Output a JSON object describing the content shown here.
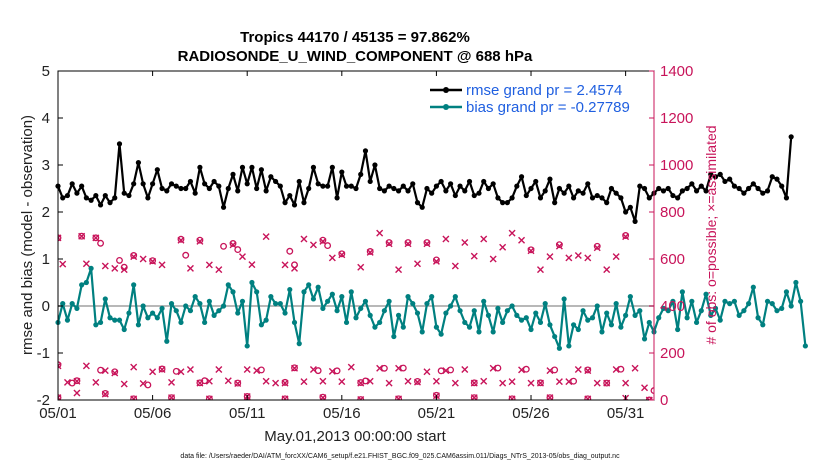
{
  "chart_data": {
    "type": "line",
    "title_line1": "Tropics 44170 / 45135 = 97.862%",
    "title_line2": "RADIOSONDE_U_WIND_COMPONENT @ 688 hPa",
    "xlabel": "May.01,2013 00:00:00 start",
    "ylabel": "rmse and bias (model - observation)",
    "ylabel_right": "# of obs: o=possible; ×=assimilated",
    "ylim": [
      -2,
      5
    ],
    "ylim_right": [
      0,
      1400
    ],
    "xlim": [
      0,
      31.5
    ],
    "xticks": [
      0,
      5,
      10,
      15,
      20,
      25,
      30
    ],
    "xtick_labels": [
      "05/01",
      "05/06",
      "05/11",
      "05/16",
      "05/21",
      "05/26",
      "05/31"
    ],
    "yticks": [
      -2,
      -1,
      0,
      1,
      2,
      3,
      4,
      5
    ],
    "ytick_labels": [
      "-2",
      "-1",
      "0",
      "1",
      "2",
      "3",
      "4",
      "5"
    ],
    "yticks_right": [
      0,
      200,
      400,
      600,
      800,
      1000,
      1200,
      1400
    ],
    "ytick_labels_right": [
      "0",
      "200",
      "400",
      "600",
      "800",
      "1000",
      "1200",
      "1400"
    ],
    "zero_line": 0,
    "legend_position": "top-right",
    "legend": [
      {
        "name": "rmse grand pr = 2.4574",
        "color": "#000000"
      },
      {
        "name": "bias grand pr = -0.27789",
        "color": "#008080"
      }
    ],
    "colors": {
      "rmse": "#000000",
      "bias": "#008080",
      "counts": "#c8145a",
      "zero": "#b8b8b8"
    },
    "series": [
      {
        "name": "rmse",
        "x_step": 0.25,
        "x_start": 0,
        "values": [
          2.55,
          2.3,
          2.35,
          2.6,
          2.4,
          2.55,
          2.3,
          2.25,
          2.35,
          2.15,
          2.35,
          2.2,
          2.3,
          3.45,
          2.4,
          2.35,
          2.6,
          3.05,
          2.6,
          2.3,
          2.6,
          2.9,
          2.5,
          2.45,
          2.6,
          2.55,
          2.5,
          2.5,
          2.65,
          2.4,
          2.95,
          2.6,
          2.5,
          2.65,
          2.55,
          2.1,
          2.5,
          2.8,
          2.45,
          2.95,
          2.6,
          2.95,
          2.5,
          2.9,
          2.45,
          2.75,
          2.65,
          2.55,
          2.2,
          2.35,
          2.15,
          2.65,
          2.2,
          2.5,
          2.95,
          2.6,
          2.55,
          2.55,
          2.95,
          2.3,
          2.85,
          2.55,
          2.55,
          2.5,
          2.8,
          3.3,
          2.65,
          3.0,
          2.5,
          2.45,
          2.55,
          2.5,
          2.45,
          2.55,
          2.45,
          2.6,
          2.2,
          2.1,
          2.5,
          2.4,
          2.55,
          2.65,
          2.45,
          2.6,
          2.35,
          2.55,
          2.45,
          2.65,
          2.35,
          2.4,
          2.65,
          2.5,
          2.6,
          2.3,
          2.2,
          2.2,
          2.3,
          2.55,
          2.75,
          2.35,
          2.5,
          2.65,
          2.3,
          2.45,
          2.7,
          2.2,
          2.5,
          2.4,
          2.55,
          2.3,
          2.45,
          2.4,
          2.6,
          2.3,
          2.35,
          2.3,
          2.2,
          2.5,
          2.4,
          2.3,
          2.0,
          2.1,
          1.8,
          2.55,
          2.5,
          2.3,
          2.4,
          2.5,
          2.45,
          2.5,
          2.35,
          2.3,
          2.45,
          2.5,
          2.6,
          2.45,
          2.55,
          2.45,
          2.8,
          2.75,
          2.8,
          2.65,
          2.7,
          2.55,
          2.5,
          2.4,
          2.5,
          2.6,
          2.5,
          2.4,
          2.45,
          2.75,
          2.7,
          2.55,
          2.3,
          3.6
        ]
      },
      {
        "name": "bias",
        "x_step": 0.25,
        "x_start": 0,
        "values": [
          -0.35,
          0.05,
          -0.3,
          0.05,
          -0.05,
          0.45,
          0.5,
          0.8,
          -0.4,
          -0.35,
          0.15,
          -0.25,
          -0.3,
          -0.3,
          -0.5,
          -0.15,
          0.45,
          -0.4,
          0.0,
          -0.25,
          -0.15,
          -0.25,
          -0.05,
          -0.75,
          0.05,
          -0.1,
          -0.35,
          0.0,
          -0.1,
          0.2,
          0.05,
          -0.35,
          0.1,
          -0.2,
          -0.1,
          0.0,
          0.45,
          0.3,
          -0.15,
          0.1,
          -0.85,
          0.5,
          0.3,
          -0.4,
          -0.3,
          0.2,
          0.05,
          0.05,
          -0.15,
          0.35,
          -0.35,
          -0.8,
          0.3,
          0.45,
          0.15,
          0.4,
          -0.05,
          0.1,
          0.25,
          -0.1,
          0.2,
          -0.35,
          0.3,
          -0.25,
          -0.05,
          0.1,
          -0.2,
          -0.45,
          -0.35,
          -0.1,
          0.1,
          -0.65,
          -0.2,
          -0.45,
          0.2,
          0.05,
          -0.15,
          -0.55,
          0.05,
          0.2,
          -0.45,
          -0.6,
          -0.15,
          0.0,
          0.2,
          -0.1,
          -0.35,
          -0.45,
          -0.1,
          -0.55,
          0.1,
          -0.2,
          -0.55,
          -0.05,
          -0.35,
          -0.1,
          0.0,
          -0.2,
          -0.3,
          -0.25,
          -0.5,
          -0.15,
          -0.35,
          0.05,
          -0.4,
          -0.65,
          -0.9,
          0.15,
          -0.85,
          -0.4,
          -0.5,
          -0.1,
          -0.3,
          -0.25,
          0.0,
          -0.55,
          -0.15,
          -0.4,
          0.05,
          -0.45,
          -0.2,
          0.2,
          -0.2,
          -0.1,
          -0.7,
          -0.35,
          -0.55,
          -0.25,
          -0.05,
          -0.1,
          0.1,
          -0.5,
          0.3,
          -0.25,
          0.1,
          -0.35,
          -0.1,
          0.25,
          -0.2,
          -0.05,
          -0.3,
          0.1,
          0.05,
          0.1,
          -0.2,
          -0.1,
          0.05,
          0.4,
          -0.25,
          -0.4,
          0.1,
          0.05,
          -0.1,
          -0.05,
          0.3,
          0.0,
          0.5,
          0.1,
          -0.85
        ]
      },
      {
        "name": "obs possible",
        "axis": "right",
        "marker": "o",
        "values": [
          [
            0,
            690
          ],
          [
            1.25,
            697
          ],
          [
            2,
            690
          ],
          [
            2.25,
            667
          ],
          [
            3.25,
            594
          ],
          [
            3.5,
            565
          ],
          [
            4,
            615
          ],
          [
            5,
            593
          ],
          [
            6.5,
            684
          ],
          [
            6.75,
            616
          ],
          [
            7.5,
            680
          ],
          [
            8.75,
            654
          ],
          [
            9.25,
            666
          ],
          [
            9.5,
            640
          ],
          [
            12.25,
            633
          ],
          [
            12.5,
            575
          ],
          [
            14,
            680
          ],
          [
            14.25,
            657
          ],
          [
            15,
            622
          ],
          [
            16.5,
            632
          ],
          [
            17.5,
            670
          ],
          [
            18.5,
            670
          ],
          [
            19.5,
            670
          ],
          [
            20,
            596
          ],
          [
            25,
            639
          ],
          [
            26.5,
            661
          ],
          [
            28.5,
            654
          ],
          [
            30,
            700
          ],
          [
            0,
            150
          ],
          [
            0.75,
            72
          ],
          [
            1,
            82
          ],
          [
            2.25,
            127
          ],
          [
            3,
            120
          ],
          [
            4.75,
            64
          ],
          [
            5.5,
            132
          ],
          [
            6.25,
            122
          ],
          [
            7.5,
            73
          ],
          [
            7.75,
            82
          ],
          [
            9.5,
            72
          ],
          [
            10.75,
            128
          ],
          [
            12,
            75
          ],
          [
            12.5,
            137
          ],
          [
            13.75,
            125
          ],
          [
            14.75,
            124
          ],
          [
            16,
            74
          ],
          [
            16.25,
            81
          ],
          [
            17.25,
            135
          ],
          [
            18.25,
            136
          ],
          [
            19,
            79
          ],
          [
            20.25,
            124
          ],
          [
            20.75,
            128
          ],
          [
            22,
            73
          ],
          [
            23.25,
            136
          ],
          [
            24.75,
            131
          ],
          [
            25.5,
            73
          ],
          [
            26.25,
            128
          ],
          [
            27.25,
            80
          ],
          [
            28,
            128
          ],
          [
            29,
            72
          ],
          [
            29.75,
            131
          ],
          [
            31.5,
            40
          ],
          [
            0,
            10
          ],
          [
            2.5,
            28
          ],
          [
            4,
            5
          ],
          [
            6,
            10
          ],
          [
            8,
            5
          ],
          [
            10,
            15
          ],
          [
            12,
            5
          ],
          [
            14,
            12
          ],
          [
            16,
            2
          ],
          [
            18,
            5
          ],
          [
            20,
            20
          ],
          [
            22,
            10
          ],
          [
            24,
            5
          ],
          [
            26,
            10
          ],
          [
            28,
            5
          ],
          [
            31.25,
            0
          ]
        ]
      },
      {
        "name": "obs assimilated",
        "axis": "right",
        "marker": "x",
        "values": [
          [
            0,
            690
          ],
          [
            0.25,
            578
          ],
          [
            1.25,
            697
          ],
          [
            1.5,
            580
          ],
          [
            2,
            690
          ],
          [
            2.5,
            570
          ],
          [
            3,
            560
          ],
          [
            3.5,
            555
          ],
          [
            4,
            610
          ],
          [
            4.5,
            600
          ],
          [
            5,
            590
          ],
          [
            5.5,
            575
          ],
          [
            6.5,
            680
          ],
          [
            7,
            560
          ],
          [
            7.5,
            675
          ],
          [
            8,
            575
          ],
          [
            8.5,
            555
          ],
          [
            9.25,
            660
          ],
          [
            9.75,
            610
          ],
          [
            10.25,
            576
          ],
          [
            11,
            695
          ],
          [
            12,
            575
          ],
          [
            12.5,
            560
          ],
          [
            13,
            685
          ],
          [
            13.5,
            660
          ],
          [
            14,
            675
          ],
          [
            14.5,
            605
          ],
          [
            15,
            618
          ],
          [
            16,
            565
          ],
          [
            16.5,
            628
          ],
          [
            17,
            710
          ],
          [
            17.5,
            665
          ],
          [
            18,
            555
          ],
          [
            18.5,
            665
          ],
          [
            19,
            580
          ],
          [
            19.5,
            665
          ],
          [
            20,
            590
          ],
          [
            20.5,
            685
          ],
          [
            21,
            570
          ],
          [
            21.5,
            670
          ],
          [
            22,
            612
          ],
          [
            22.5,
            685
          ],
          [
            23,
            600
          ],
          [
            23.5,
            650
          ],
          [
            24,
            710
          ],
          [
            24.5,
            680
          ],
          [
            25,
            635
          ],
          [
            25.5,
            555
          ],
          [
            26,
            610
          ],
          [
            26.5,
            655
          ],
          [
            27,
            605
          ],
          [
            27.5,
            615
          ],
          [
            28,
            605
          ],
          [
            28.5,
            648
          ],
          [
            29,
            555
          ],
          [
            29.5,
            610
          ],
          [
            30,
            695
          ],
          [
            0,
            145
          ],
          [
            0.5,
            75
          ],
          [
            1,
            80
          ],
          [
            1.5,
            145
          ],
          [
            2,
            75
          ],
          [
            2.5,
            125
          ],
          [
            3,
            115
          ],
          [
            3.5,
            68
          ],
          [
            4,
            140
          ],
          [
            4.5,
            70
          ],
          [
            5,
            120
          ],
          [
            5.5,
            130
          ],
          [
            6,
            75
          ],
          [
            6.5,
            120
          ],
          [
            7,
            130
          ],
          [
            7.5,
            72
          ],
          [
            8,
            80
          ],
          [
            8.5,
            130
          ],
          [
            9,
            82
          ],
          [
            9.5,
            70
          ],
          [
            10,
            130
          ],
          [
            10.5,
            125
          ],
          [
            11,
            80
          ],
          [
            11.5,
            72
          ],
          [
            12,
            72
          ],
          [
            12.5,
            135
          ],
          [
            13,
            78
          ],
          [
            13.5,
            130
          ],
          [
            14,
            80
          ],
          [
            14.5,
            122
          ],
          [
            15,
            78
          ],
          [
            15.5,
            140
          ],
          [
            16,
            72
          ],
          [
            16.5,
            80
          ],
          [
            17,
            135
          ],
          [
            17.5,
            72
          ],
          [
            18,
            135
          ],
          [
            18.5,
            80
          ],
          [
            19,
            76
          ],
          [
            19.5,
            120
          ],
          [
            20,
            80
          ],
          [
            20.5,
            125
          ],
          [
            21,
            72
          ],
          [
            21.5,
            130
          ],
          [
            22,
            72
          ],
          [
            22.5,
            80
          ],
          [
            23,
            135
          ],
          [
            23.5,
            72
          ],
          [
            24,
            78
          ],
          [
            24.5,
            128
          ],
          [
            25,
            72
          ],
          [
            25.5,
            72
          ],
          [
            26,
            125
          ],
          [
            26.5,
            78
          ],
          [
            27,
            78
          ],
          [
            27.5,
            130
          ],
          [
            28,
            125
          ],
          [
            28.5,
            72
          ],
          [
            29,
            72
          ],
          [
            29.5,
            130
          ],
          [
            30,
            72
          ],
          [
            30.5,
            135
          ],
          [
            31,
            52
          ],
          [
            0,
            10
          ],
          [
            1,
            30
          ],
          [
            2.5,
            25
          ],
          [
            4,
            5
          ],
          [
            6,
            10
          ],
          [
            8,
            5
          ],
          [
            10,
            15
          ],
          [
            12,
            5
          ],
          [
            14,
            10
          ],
          [
            16,
            2
          ],
          [
            18,
            5
          ],
          [
            20,
            18
          ],
          [
            22,
            10
          ],
          [
            24,
            5
          ],
          [
            26,
            10
          ],
          [
            28,
            5
          ],
          [
            30,
            8
          ],
          [
            31.25,
            0
          ]
        ]
      }
    ]
  },
  "footer": {
    "data_file": "data file: /Users/raeder/DAI/ATM_forcXX/CAM6_setup/f.e21.FHIST_BGC.f09_025.CAM6assim.011/Diags_NTrS_2013-05/obs_diag_output.nc"
  }
}
